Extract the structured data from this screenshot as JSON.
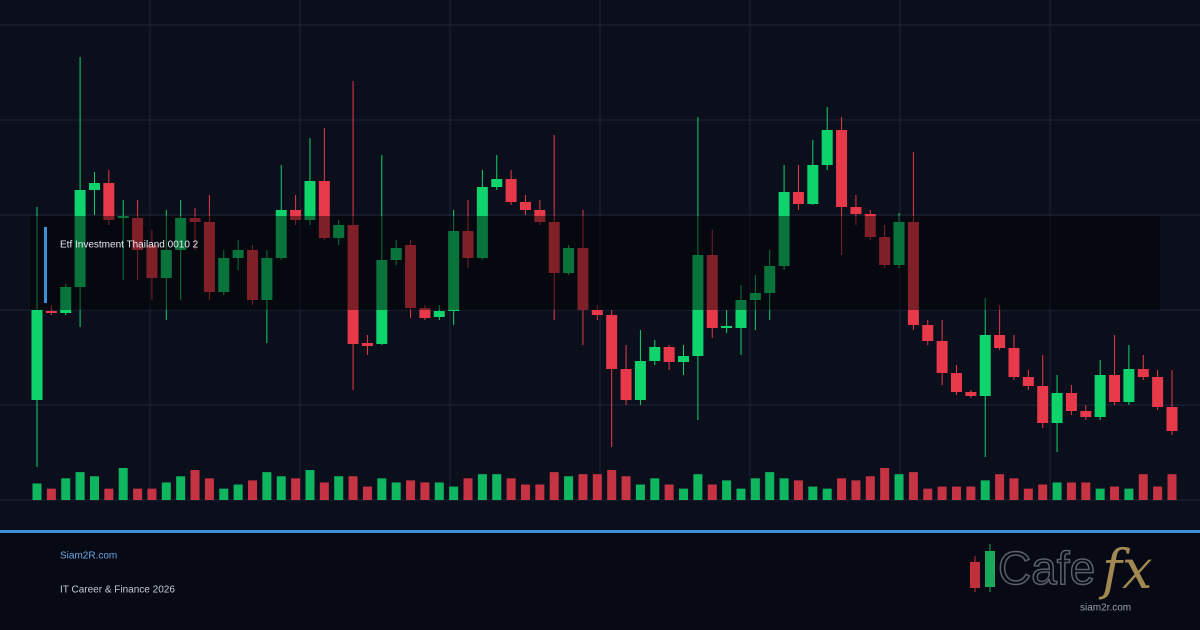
{
  "chart_data": {
    "type": "candlestick",
    "label": "Etf Investment Thailand 0010 2",
    "ylim": [
      0,
      475
    ],
    "yticks": [
      0,
      95,
      190,
      285,
      380,
      475
    ],
    "grid": true,
    "up_color": "#0fd46c",
    "down_color": "#e8394a",
    "open": [
      100,
      189,
      187,
      213,
      310,
      317,
      282,
      282,
      255,
      222,
      250,
      282,
      278,
      208,
      242,
      250,
      200,
      242,
      290,
      280,
      319,
      262,
      275,
      157,
      156,
      240,
      255,
      192,
      183,
      189,
      269,
      242,
      313,
      321,
      298,
      290,
      278,
      227,
      252,
      190,
      185,
      131,
      100,
      139,
      153,
      138,
      144,
      245,
      172,
      172,
      200,
      207,
      234,
      308,
      296,
      335,
      370,
      293,
      286,
      263,
      235,
      278,
      175,
      159,
      127,
      108,
      104,
      165,
      152,
      123,
      114,
      77,
      107,
      89,
      83,
      125,
      98,
      131,
      123,
      93
    ],
    "high": [
      293,
      195,
      216,
      443,
      328,
      330,
      300,
      300,
      270,
      290,
      300,
      292,
      305,
      250,
      260,
      255,
      250,
      335,
      305,
      362,
      372,
      280,
      419,
      165,
      345,
      260,
      260,
      195,
      195,
      290,
      300,
      330,
      345,
      330,
      305,
      300,
      365,
      255,
      290,
      195,
      190,
      155,
      170,
      160,
      155,
      155,
      383,
      270,
      190,
      215,
      225,
      250,
      335,
      335,
      360,
      393,
      383,
      305,
      290,
      275,
      287,
      348,
      180,
      180,
      135,
      110,
      202,
      195,
      165,
      130,
      145,
      125,
      115,
      95,
      140,
      165,
      155,
      145,
      130,
      130
    ],
    "low": [
      33,
      185,
      185,
      173,
      285,
      275,
      220,
      220,
      200,
      180,
      200,
      250,
      200,
      205,
      230,
      195,
      157,
      240,
      275,
      275,
      260,
      255,
      110,
      145,
      155,
      235,
      182,
      180,
      180,
      175,
      232,
      240,
      310,
      295,
      285,
      275,
      180,
      225,
      155,
      180,
      53,
      95,
      95,
      135,
      130,
      125,
      80,
      162,
      167,
      145,
      170,
      180,
      230,
      290,
      295,
      330,
      245,
      275,
      260,
      232,
      232,
      170,
      155,
      115,
      105,
      102,
      43,
      150,
      120,
      110,
      72,
      48,
      85,
      80,
      80,
      95,
      95,
      120,
      90,
      65
    ],
    "close": [
      190,
      187,
      213,
      310,
      317,
      280,
      284,
      250,
      222,
      250,
      282,
      278,
      208,
      242,
      250,
      200,
      242,
      290,
      280,
      319,
      262,
      275,
      156,
      154,
      240,
      252,
      192,
      182,
      189,
      269,
      242,
      313,
      321,
      298,
      290,
      278,
      227,
      252,
      190,
      185,
      131,
      100,
      139,
      153,
      138,
      144,
      245,
      172,
      174,
      200,
      207,
      234,
      308,
      296,
      335,
      370,
      293,
      286,
      263,
      235,
      278,
      175,
      159,
      127,
      108,
      104,
      165,
      152,
      123,
      114,
      77,
      107,
      89,
      83,
      125,
      98,
      131,
      123,
      93,
      69
    ],
    "volume": [
      16,
      11,
      21,
      27,
      23,
      11,
      31,
      11,
      11,
      17,
      23,
      29,
      21,
      11,
      15,
      19,
      27,
      23,
      21,
      29,
      17,
      23,
      23,
      13,
      21,
      17,
      19,
      17,
      17,
      13,
      21,
      25,
      25,
      21,
      15,
      15,
      27,
      23,
      25,
      25,
      29,
      23,
      15,
      21,
      15,
      11,
      25,
      15,
      19,
      11,
      21,
      27,
      21,
      19,
      13,
      11,
      21,
      19,
      23,
      31,
      25,
      27,
      11,
      13,
      13,
      13,
      19,
      25,
      21,
      11,
      15,
      17,
      17,
      17,
      11,
      13,
      11,
      25,
      13,
      25
    ]
  },
  "footer": {
    "site": "Siam2R.com",
    "tagline": "IT Career & Finance 2026"
  },
  "logo": {
    "name": "Cafe",
    "accent": "fx",
    "url": "siam2r.com"
  }
}
